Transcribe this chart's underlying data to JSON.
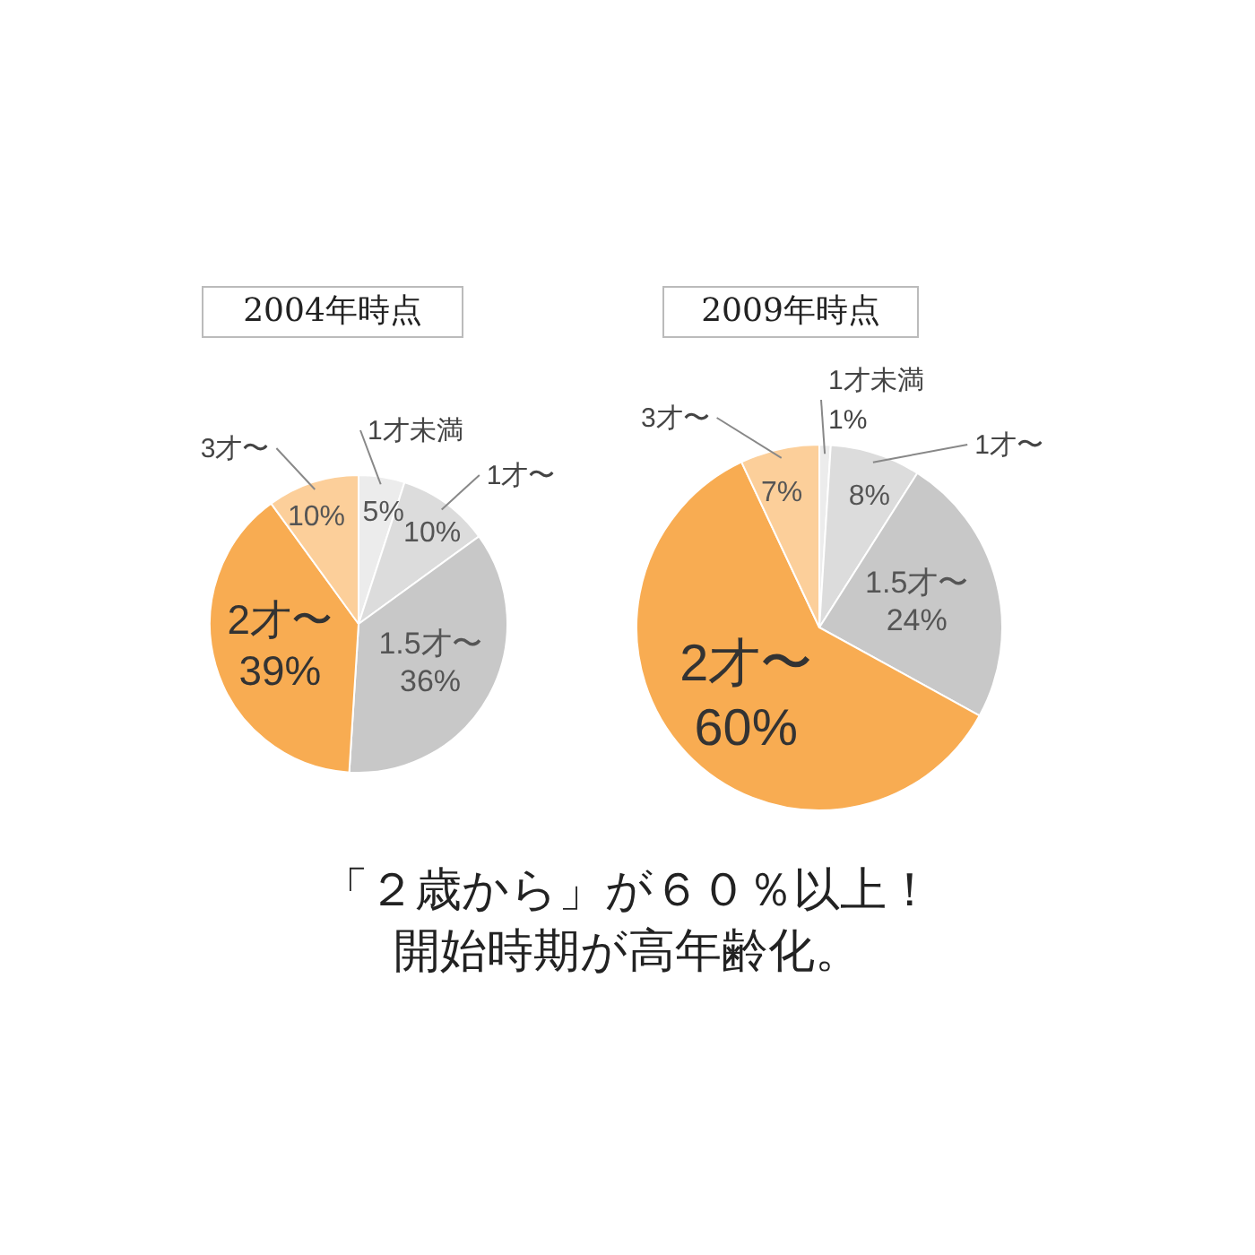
{
  "chart_data": [
    {
      "type": "pie",
      "title": "2004年時点",
      "categories": [
        "1才未満",
        "1才〜",
        "1.5才〜",
        "2才〜",
        "3才〜"
      ],
      "values": [
        5,
        10,
        36,
        39,
        10
      ],
      "colors": [
        "#ececec",
        "#dcdcdc",
        "#c8c8c8",
        "#f8ac52",
        "#fccf9a"
      ],
      "value_labels": [
        "5%",
        "10%",
        "36%",
        "39%",
        "10%"
      ]
    },
    {
      "type": "pie",
      "title": "2009年時点",
      "categories": [
        "1才未満",
        "1才〜",
        "1.5才〜",
        "2才〜",
        "3才〜"
      ],
      "values": [
        1,
        8,
        24,
        60,
        7
      ],
      "colors": [
        "#ececec",
        "#dcdcdc",
        "#c8c8c8",
        "#f8ac52",
        "#fccf9a"
      ],
      "value_labels": [
        "1%",
        "8%",
        "24%",
        "60%",
        "7%"
      ]
    },
    {
      "type": "other",
      "annotations": [
        "「２歳から」が６０％以上！",
        "開始時期が高年齢化。"
      ]
    }
  ]
}
